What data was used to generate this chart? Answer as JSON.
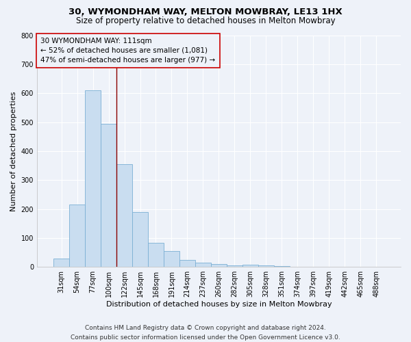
{
  "title": "30, WYMONDHAM WAY, MELTON MOWBRAY, LE13 1HX",
  "subtitle": "Size of property relative to detached houses in Melton Mowbray",
  "xlabel": "Distribution of detached houses by size in Melton Mowbray",
  "ylabel": "Number of detached properties",
  "bar_categories": [
    "31sqm",
    "54sqm",
    "77sqm",
    "100sqm",
    "122sqm",
    "145sqm",
    "168sqm",
    "191sqm",
    "214sqm",
    "237sqm",
    "260sqm",
    "282sqm",
    "305sqm",
    "328sqm",
    "351sqm",
    "374sqm",
    "397sqm",
    "419sqm",
    "442sqm",
    "465sqm",
    "488sqm"
  ],
  "bar_values": [
    30,
    215,
    610,
    495,
    355,
    190,
    83,
    55,
    25,
    15,
    10,
    5,
    8,
    5,
    3,
    0,
    0,
    0,
    0,
    0,
    0
  ],
  "bar_color": "#c9ddf0",
  "bar_edgecolor": "#7bafd4",
  "annotation_line1": "30 WYMONDHAM WAY: 111sqm",
  "annotation_line2": "← 52% of detached houses are smaller (1,081)",
  "annotation_line3": "47% of semi-detached houses are larger (977) →",
  "vline_x_index": 3.5,
  "vline_color": "#8b0000",
  "annotation_box_edgecolor": "#cc0000",
  "ylim": [
    0,
    800
  ],
  "yticks": [
    0,
    100,
    200,
    300,
    400,
    500,
    600,
    700,
    800
  ],
  "background_color": "#eef2f9",
  "grid_color": "#ffffff",
  "footer_line1": "Contains HM Land Registry data © Crown copyright and database right 2024.",
  "footer_line2": "Contains public sector information licensed under the Open Government Licence v3.0.",
  "title_fontsize": 9.5,
  "subtitle_fontsize": 8.5,
  "xlabel_fontsize": 8,
  "ylabel_fontsize": 8,
  "tick_fontsize": 7,
  "annotation_fontsize": 7.5,
  "footer_fontsize": 6.5
}
